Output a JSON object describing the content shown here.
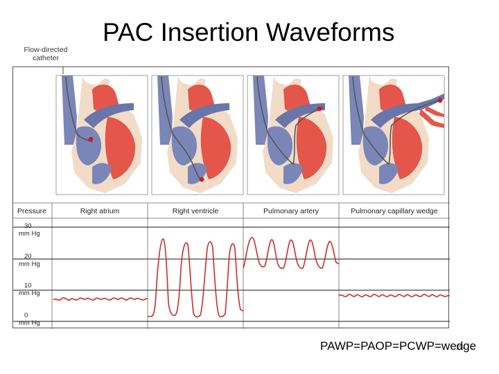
{
  "title": "PAC Insertion Waveforms",
  "catheter_label": [
    "Flow-directed",
    "catheter"
  ],
  "table": {
    "pressure_header": "Pressure",
    "columns": [
      "Right atrium",
      "Right ventricle",
      "Pulmonary artery",
      "Pulmonary capillary wedge"
    ],
    "scale_labels": [
      {
        "value": "30",
        "unit": "mm Hg"
      },
      {
        "value": "20",
        "unit": "mm Hg"
      },
      {
        "value": "10",
        "unit": "mm Hg"
      },
      {
        "value": "0",
        "unit": "mm Hg"
      }
    ]
  },
  "footnote": "PAWP=PAOP=PCWP=wedge",
  "page_number": "25",
  "colors": {
    "vein_blue": "#7a86b8",
    "artery_red": "#e4554a",
    "myocardium": "#f2dcc8",
    "waveform": "#cc2a2a",
    "catheter_tip": "#cc1a1a"
  }
}
